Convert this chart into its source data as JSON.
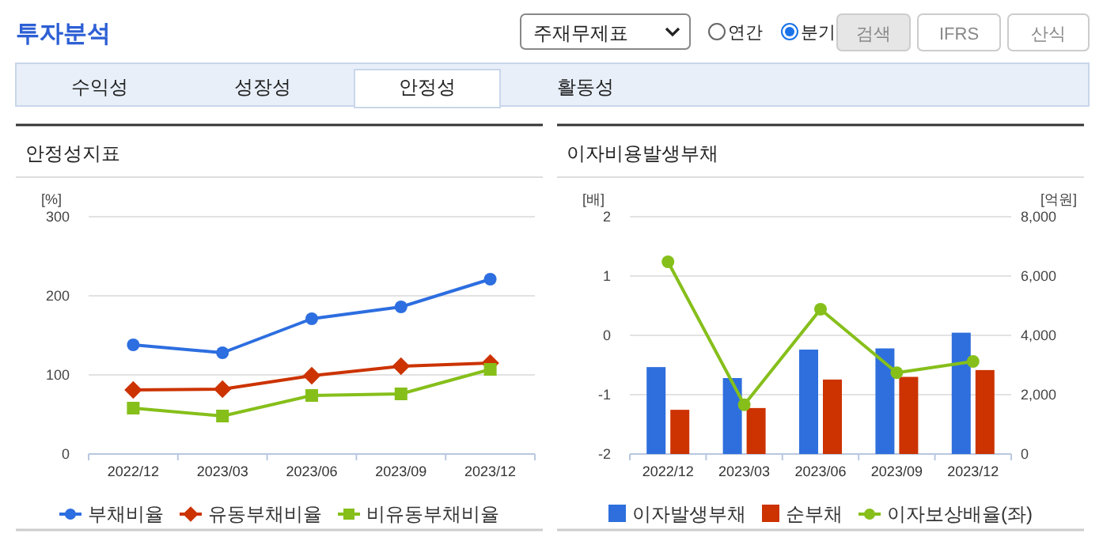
{
  "chart_data": [
    {
      "type": "other",
      "title": "투자분석",
      "annotations": [
        "주재무제표",
        "연간",
        "분기",
        "검색",
        "IFRS",
        "산식",
        "수익성",
        "성장성",
        "안정성",
        "활동성"
      ]
    },
    {
      "type": "line",
      "title": "안정성지표",
      "ylabel": "[%]",
      "categories": [
        "2022/12",
        "2023/03",
        "2023/06",
        "2023/09",
        "2023/12"
      ],
      "ylim": [
        0,
        300
      ],
      "yticks": [
        0,
        100,
        200,
        300
      ],
      "grid": "y",
      "legend": "bottom",
      "series": [
        {
          "name": "부채비율",
          "color": "#2d6ee0",
          "marker": "circle",
          "values": [
            138,
            128,
            171,
            186,
            221
          ]
        },
        {
          "name": "유동부채비율",
          "color": "#cc3300",
          "marker": "diamond",
          "values": [
            81,
            82,
            99,
            111,
            115
          ]
        },
        {
          "name": "비유동부채비율",
          "color": "#86bf1a",
          "marker": "square",
          "values": [
            58,
            48,
            74,
            76,
            107
          ]
        }
      ]
    },
    {
      "type": "bar",
      "title": "이자비용발생부채",
      "ylabel": "[배]",
      "y2label": "[억원]",
      "categories": [
        "2022/12",
        "2023/03",
        "2023/06",
        "2023/09",
        "2023/12"
      ],
      "ylim": [
        -2,
        2
      ],
      "yticks": [
        -2,
        -1,
        0,
        1,
        2
      ],
      "y2lim": [
        0,
        8000
      ],
      "y2ticks": [
        0,
        {
          "value": 2000,
          "label": "2,000"
        },
        {
          "value": 4000,
          "label": "4,000"
        },
        {
          "value": 6000,
          "label": "6,000"
        },
        {
          "value": 8000,
          "label": "8,000"
        }
      ],
      "grid": "y",
      "legend": "bottom",
      "series": [
        {
          "name": "이자발생부채",
          "color": "#2e6fdd",
          "axis": "y2",
          "values": [
            2930,
            2560,
            3520,
            3560,
            4090
          ]
        },
        {
          "name": "순부채",
          "color": "#cc3300",
          "axis": "y2",
          "values": [
            1490,
            1550,
            2510,
            2600,
            2830
          ]
        },
        {
          "name": "이자보상배율(좌)",
          "color": "#86bf1a",
          "type": "line",
          "axis": "y",
          "marker": "circle",
          "values": [
            1.24,
            -1.17,
            0.44,
            -0.63,
            -0.44
          ]
        }
      ]
    }
  ]
}
